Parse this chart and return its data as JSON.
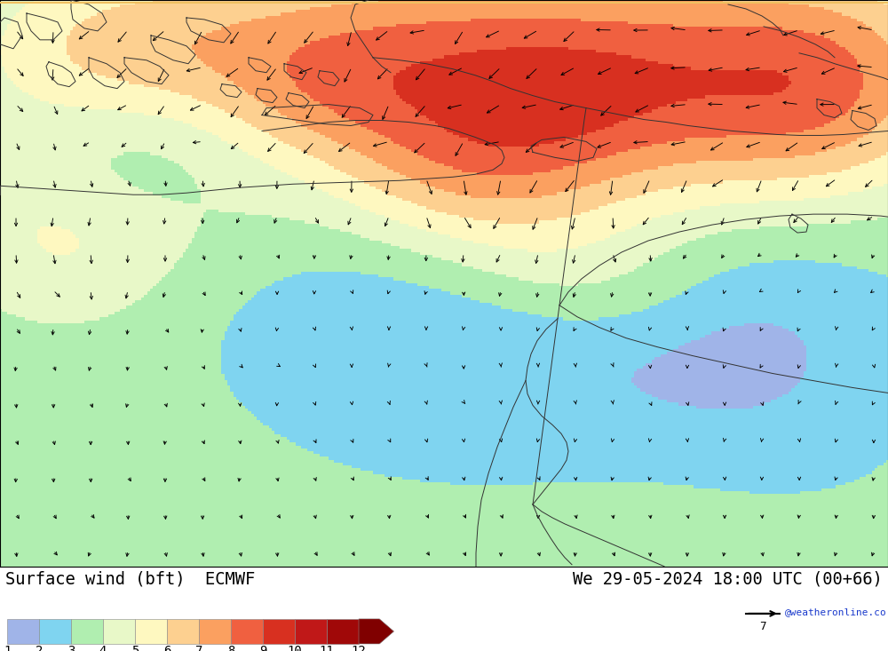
{
  "title_left": "Surface wind (bft)  ECMWF",
  "title_right": "We 29-05-2024 18:00 UTC (00+66)",
  "watermark": "@weatheronline.co.uk",
  "colorbar_levels": [
    1,
    2,
    3,
    4,
    5,
    6,
    7,
    8,
    9,
    10,
    11,
    12
  ],
  "colorbar_colors": [
    "#a0b4e8",
    "#7fd4f0",
    "#b0eeb0",
    "#e8f8c8",
    "#fef8c0",
    "#fdd090",
    "#fba060",
    "#f06040",
    "#d83020",
    "#c01818",
    "#a00808",
    "#800000"
  ],
  "background_color": "#ffffff",
  "figsize": [
    10.0,
    7.33
  ],
  "dpi": 100
}
